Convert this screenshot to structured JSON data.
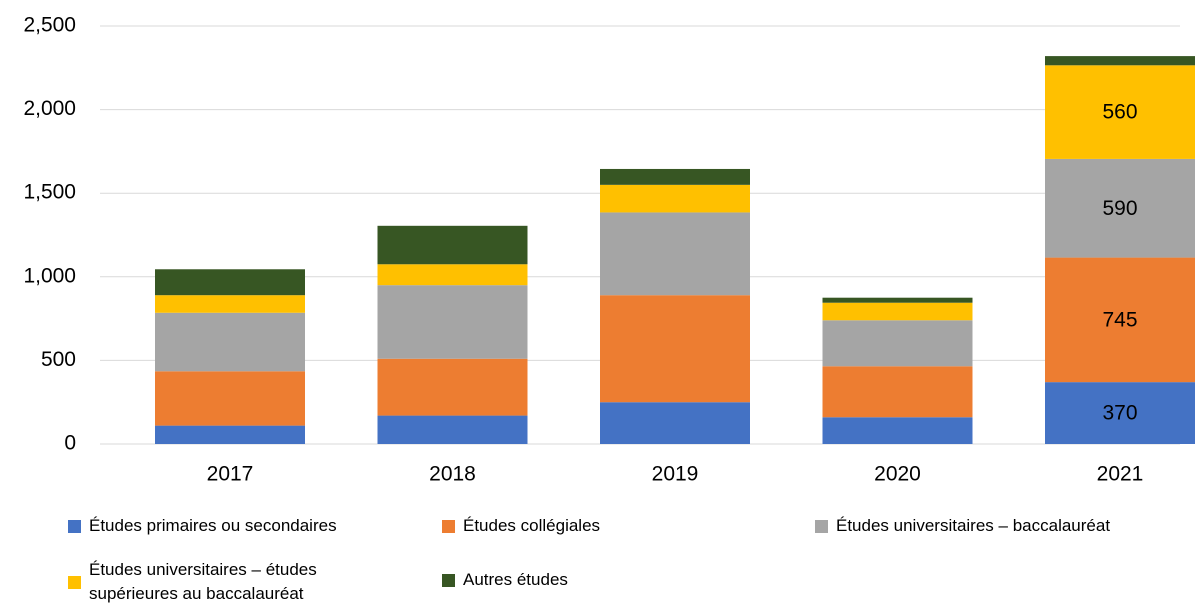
{
  "chart_data": {
    "type": "stacked_bar",
    "categories": [
      "2017",
      "2018",
      "2019",
      "2020",
      "2021"
    ],
    "series": [
      {
        "name": "Études primaires ou secondaires",
        "color": "#4472c4",
        "values": [
          110,
          170,
          250,
          160,
          370
        ],
        "value_labels": [
          null,
          null,
          null,
          null,
          "370"
        ]
      },
      {
        "name": "Études collégiales",
        "color": "#ed7d31",
        "values": [
          325,
          340,
          640,
          305,
          745
        ],
        "value_labels": [
          null,
          null,
          null,
          null,
          "745"
        ]
      },
      {
        "name": "Études universitaires – baccalauréat",
        "color": "#a5a5a5",
        "values": [
          350,
          440,
          495,
          275,
          590
        ],
        "value_labels": [
          null,
          null,
          null,
          null,
          "590"
        ]
      },
      {
        "name": "Études universitaires – études supérieures au baccalauréat",
        "color": "#ffc000",
        "values": [
          105,
          125,
          165,
          105,
          560
        ],
        "value_labels": [
          null,
          null,
          null,
          null,
          "560"
        ]
      },
      {
        "name": "Autres études",
        "color": "#375623",
        "values": [
          155,
          230,
          95,
          30,
          55
        ]
      }
    ],
    "ylim": [
      0,
      2500
    ],
    "yticks": [
      0,
      {
        "value": 500,
        "label": "500"
      },
      {
        "value": 1000,
        "label": "1,000"
      },
      {
        "value": 1500,
        "label": "1,500"
      },
      {
        "value": 2000,
        "label": "2,000"
      },
      {
        "value": 2500,
        "label": "2,500"
      }
    ],
    "grid": true
  }
}
